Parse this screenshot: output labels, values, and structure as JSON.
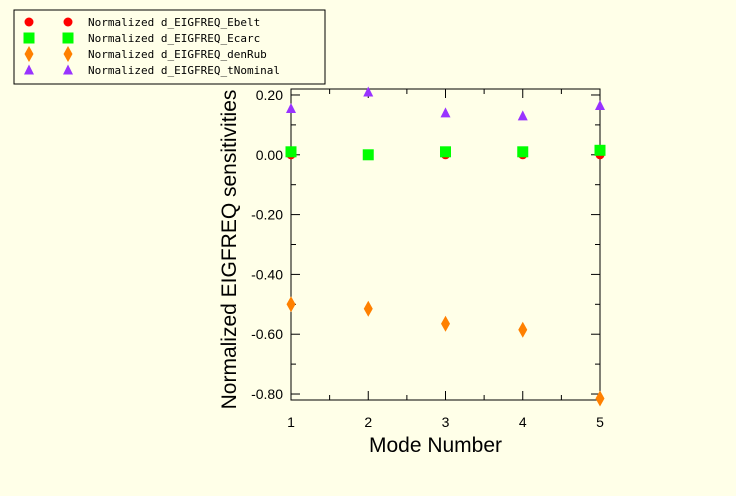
{
  "chart_data": {
    "type": "scatter",
    "title": "",
    "xlabel": "Mode Number",
    "ylabel": "Normalized EIGFREQ sensitivities",
    "xlim": [
      1,
      5
    ],
    "ylim": [
      -0.82,
      0.22
    ],
    "x_ticks": [
      "1",
      "2",
      "3",
      "4",
      "5"
    ],
    "y_ticks": [
      "0.20",
      "0.00",
      "-0.20",
      "-0.40",
      "-0.60",
      "-0.80"
    ],
    "grid": false,
    "legend_position": "top-left, outside plot",
    "x": [
      1,
      2,
      3,
      4,
      5
    ],
    "series": [
      {
        "name": "Normalized d_EIGFREQ_Ebelt",
        "marker": "circle",
        "color": "#ff0000",
        "values": [
          0.0,
          0.0,
          0.0,
          0.0,
          0.0
        ]
      },
      {
        "name": "Normalized d_EIGFREQ_Ecarc",
        "marker": "square",
        "color": "#00ff00",
        "values": [
          0.01,
          0.0,
          0.01,
          0.01,
          0.015
        ]
      },
      {
        "name": "Normalized d_EIGFREQ_denRub",
        "marker": "diamond",
        "color": "#ff8000",
        "values": [
          -0.5,
          -0.515,
          -0.565,
          -0.585,
          -0.815
        ]
      },
      {
        "name": "Normalized d_EIGFREQ_tNominal",
        "marker": "triangle",
        "color": "#9933ff",
        "values": [
          0.155,
          0.21,
          0.14,
          0.13,
          0.165
        ]
      }
    ]
  }
}
